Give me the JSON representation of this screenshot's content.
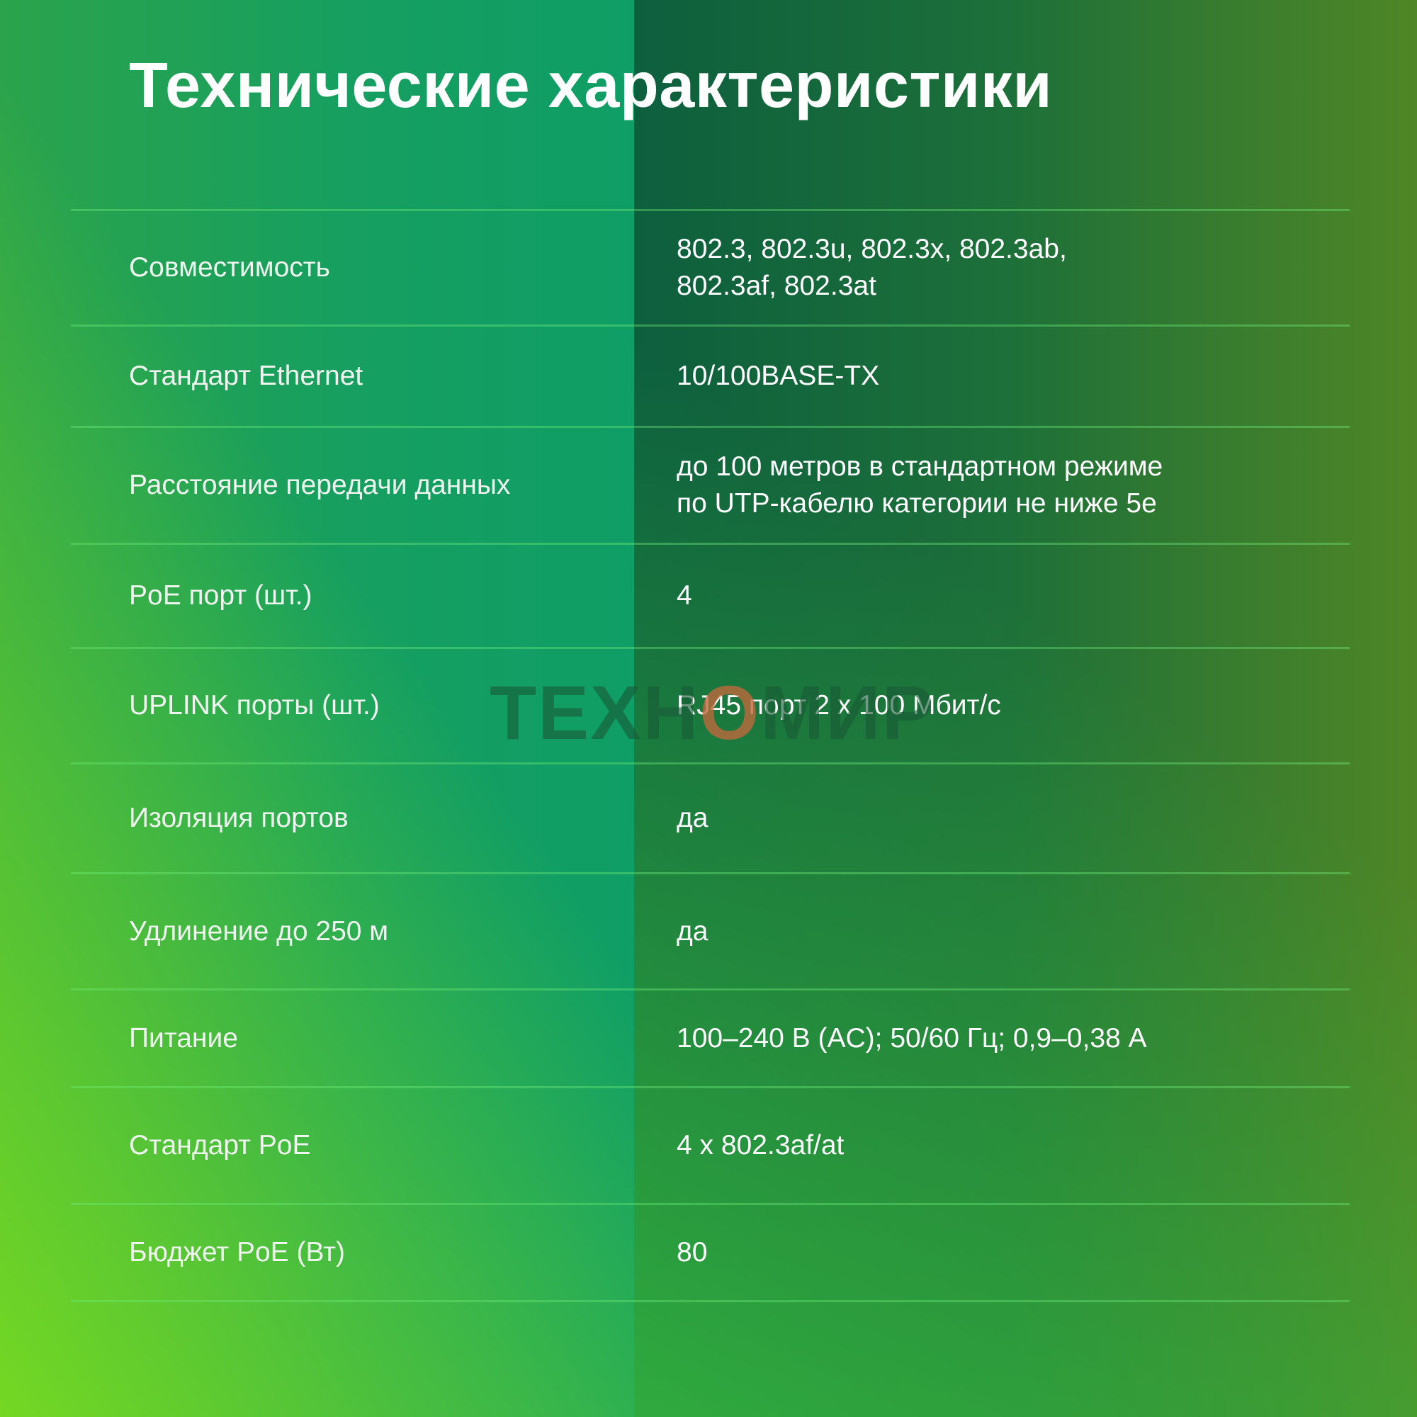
{
  "title": "Технические характеристики",
  "watermark": {
    "part1": "ТЕХН",
    "part2": "О",
    "part3": "МИР"
  },
  "colors": {
    "title_text": "#ffffff",
    "label_text": "#eef6ef",
    "value_text": "#ffffff",
    "divider": "rgba(110,235,120,0.40)",
    "bg_left_top_left": "#2ba34c",
    "bg_left_top_right": "#0f9e66",
    "bg_left_bottom": "#6fd32b",
    "bg_right_top_left": "#0d5f3e",
    "bg_right_top_right": "#4f8626",
    "bg_right_bottom": "#3fa426",
    "watermark_text": "rgba(25,90,55,0.62)",
    "watermark_letter_o": "rgba(190,105,60,0.80)"
  },
  "table": {
    "rows": [
      {
        "label": "Совместимость",
        "value": "802.3, 802.3u, 802.3x, 802.3ab,\n802.3af, 802.3at"
      },
      {
        "label": "Стандарт Ethernet",
        "value": "10/100BASE-TX"
      },
      {
        "label": "Расстояние передачи данных",
        "value": "до 100 метров в стандартном режиме\nпо UTP-кабелю категории не ниже 5e"
      },
      {
        "label": "PoE порт (шт.)",
        "value": "4"
      },
      {
        "label": "UPLINK порты (шт.)",
        "value": "RJ45 порт 2 x 100 Мбит/с"
      },
      {
        "label": "Изоляция портов",
        "value": "да"
      },
      {
        "label": "Удлинение до 250 м",
        "value": "да"
      },
      {
        "label": "Питание",
        "value": "100–240 В (AC); 50/60 Гц; 0,9–0,38 А"
      },
      {
        "label": "Стандарт PoE",
        "value": "4 x 802.3af/at"
      },
      {
        "label": "Бюджет PoE (Вт)",
        "value": "80"
      }
    ]
  }
}
